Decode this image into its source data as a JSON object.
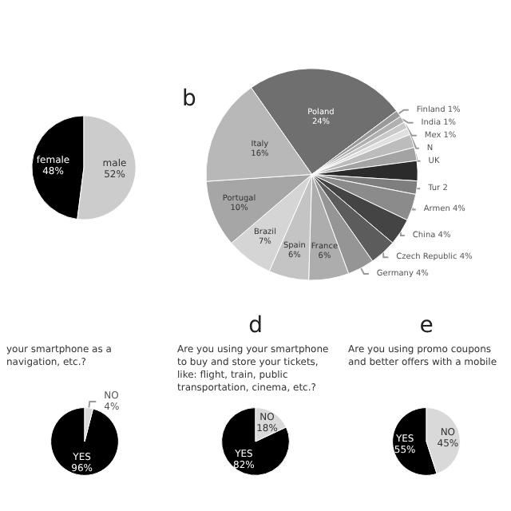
{
  "chart_data": [
    {
      "type": "pie",
      "categories": [
        "female",
        "male"
      ],
      "values": [
        48,
        52
      ],
      "colors": [
        "#000000",
        "#cccccc"
      ],
      "value_labels": [
        "48%",
        "52%"
      ]
    },
    {
      "type": "pie",
      "title": "b",
      "categories": [
        "Poland",
        "Finland",
        "India",
        "Mex",
        "N",
        null,
        "UK",
        null,
        "Tur",
        "Armen",
        "China",
        "Czech Republic",
        "Germany",
        "France",
        "Spain",
        "Brazil",
        "Portugal",
        "Italy"
      ],
      "values": [
        24,
        1,
        1,
        1,
        1,
        2,
        2,
        3,
        2,
        4,
        4,
        4,
        4,
        6,
        6,
        7,
        10,
        16
      ],
      "colors": [
        "#6f6f6f",
        "#999999",
        "#b0b0b0",
        "#c9c9c9",
        "#e0e0e0",
        "#bcbcbc",
        "#a3a3a3",
        "#2b2b2b",
        "#7e7e7e",
        "#8b8b8b",
        "#444444",
        "#5c5c5c",
        "#959595",
        "#adadad",
        "#c4c4c4",
        "#d5d5d5",
        "#a6a6a6",
        "#b8b8b8"
      ],
      "value_labels": [
        "24%",
        "1%",
        "1%",
        "1%",
        null,
        null,
        null,
        null,
        "2",
        "4%",
        "4%",
        "4%",
        "4%",
        "6%",
        "6%",
        "7%",
        "10%",
        "16%"
      ]
    },
    {
      "type": "pie",
      "subtitle": "your smartphone as a navigation, etc.?",
      "categories": [
        "YES",
        "NO"
      ],
      "values": [
        96,
        4
      ],
      "colors": [
        "#000000",
        "#d9d9d9"
      ],
      "value_labels": [
        "96%",
        "4%"
      ]
    },
    {
      "type": "pie",
      "title": "d",
      "subtitle": "Are you using your smartphone to buy and store your tickets, like: flight, train, public transportation, cinema, etc.?",
      "categories": [
        "YES",
        "NO"
      ],
      "values": [
        82,
        18
      ],
      "colors": [
        "#000000",
        "#d9d9d9"
      ],
      "value_labels": [
        "82%",
        "18%"
      ]
    },
    {
      "type": "pie",
      "title": "e",
      "subtitle": "Are you using promo coupons and better offers with a mobile",
      "categories": [
        "YES",
        "NO"
      ],
      "values": [
        55,
        45
      ],
      "colors": [
        "#000000",
        "#d9d9d9"
      ],
      "value_labels": [
        "55%",
        "45%"
      ]
    }
  ]
}
